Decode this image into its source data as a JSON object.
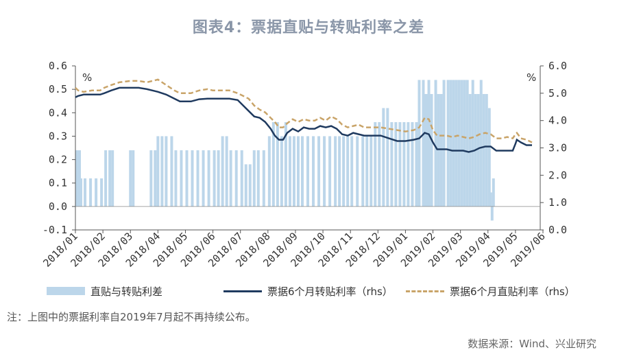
{
  "title": "图表4：票据直贴与转贴利率之差",
  "note": "注：上图中的票据利率自2019年7月起不再持续公布。",
  "source": "数据来源：Wind、兴业研究",
  "colors": {
    "bar": "#bcd6ea",
    "line": "#1f3a5f",
    "dash": "#c9a469"
  },
  "chart_data": {
    "type": "bar+line",
    "x_tick_labels": [
      "2018/01",
      "2018/02",
      "2018/03",
      "2018/04",
      "2018/05",
      "2018/06",
      "2018/07",
      "2018/08",
      "2018/09",
      "2018/10",
      "2018/11",
      "2018/12",
      "2019/01",
      "2019/02",
      "2019/03",
      "2019/04",
      "2019/05",
      "2019/06"
    ],
    "ylim_left": [
      -0.1,
      0.6
    ],
    "ylim_right": [
      0.0,
      6.0
    ],
    "y_ticks_left": [
      "0.6",
      "0.5",
      "0.4",
      "0.3",
      "0.2",
      "0.1",
      "0.0",
      "-0.1"
    ],
    "y_ticks_right": [
      "6.0",
      "5.0",
      "4.0",
      "3.0",
      "2.0",
      "1.0",
      "0.0"
    ],
    "unit_left": "%",
    "unit_right": "%",
    "grid": false,
    "legend_position": "bottom",
    "series": [
      {
        "name": "直贴与转贴利差",
        "type": "bar",
        "axis": "left",
        "points": [
          [
            0.0,
            0.24
          ],
          [
            0.1,
            0.24
          ],
          [
            0.15,
            0.12
          ],
          [
            0.3,
            0.12
          ],
          [
            0.5,
            0.12
          ],
          [
            0.7,
            0.12
          ],
          [
            0.9,
            0.12
          ],
          [
            1.05,
            0.24
          ],
          [
            1.2,
            0.24
          ],
          [
            1.3,
            0.24
          ],
          [
            1.95,
            0.24
          ],
          [
            2.05,
            0.24
          ],
          [
            2.7,
            0.24
          ],
          [
            2.85,
            0.24
          ],
          [
            2.95,
            0.3
          ],
          [
            3.1,
            0.3
          ],
          [
            3.25,
            0.3
          ],
          [
            3.45,
            0.3
          ],
          [
            3.6,
            0.24
          ],
          [
            3.8,
            0.24
          ],
          [
            4.0,
            0.24
          ],
          [
            4.2,
            0.24
          ],
          [
            4.4,
            0.24
          ],
          [
            4.6,
            0.24
          ],
          [
            4.8,
            0.24
          ],
          [
            5.0,
            0.24
          ],
          [
            5.15,
            0.24
          ],
          [
            5.3,
            0.3
          ],
          [
            5.45,
            0.3
          ],
          [
            5.6,
            0.24
          ],
          [
            5.8,
            0.24
          ],
          [
            6.0,
            0.24
          ],
          [
            6.15,
            0.18
          ],
          [
            6.3,
            0.18
          ],
          [
            6.45,
            0.24
          ],
          [
            6.6,
            0.24
          ],
          [
            6.8,
            0.24
          ],
          [
            7.0,
            0.3
          ],
          [
            7.15,
            0.36
          ],
          [
            7.3,
            0.36
          ],
          [
            7.45,
            0.3
          ],
          [
            7.6,
            0.36
          ],
          [
            7.75,
            0.3
          ],
          [
            7.9,
            0.3
          ],
          [
            8.05,
            0.3
          ],
          [
            8.2,
            0.3
          ],
          [
            8.4,
            0.3
          ],
          [
            8.6,
            0.3
          ],
          [
            8.8,
            0.3
          ],
          [
            9.0,
            0.3
          ],
          [
            9.2,
            0.3
          ],
          [
            9.4,
            0.3
          ],
          [
            9.55,
            0.3
          ],
          [
            9.7,
            0.3
          ],
          [
            9.85,
            0.3
          ],
          [
            10.0,
            0.3
          ],
          [
            10.2,
            0.3
          ],
          [
            10.4,
            0.3
          ],
          [
            10.55,
            0.3
          ],
          [
            10.7,
            0.3
          ],
          [
            10.85,
            0.36
          ],
          [
            11.0,
            0.36
          ],
          [
            11.15,
            0.42
          ],
          [
            11.3,
            0.42
          ],
          [
            11.45,
            0.36
          ],
          [
            11.6,
            0.36
          ],
          [
            11.75,
            0.36
          ],
          [
            11.9,
            0.36
          ],
          [
            12.05,
            0.36
          ],
          [
            12.2,
            0.36
          ],
          [
            12.35,
            0.36
          ],
          [
            12.45,
            0.54
          ],
          [
            12.6,
            0.54
          ],
          [
            12.7,
            0.48
          ],
          [
            12.8,
            0.54
          ],
          [
            12.9,
            0.48
          ],
          [
            13.05,
            0.54
          ],
          [
            13.15,
            0.48
          ],
          [
            13.25,
            0.48
          ],
          [
            13.35,
            0.54
          ],
          [
            13.5,
            0.54
          ],
          [
            13.6,
            0.54
          ],
          [
            13.7,
            0.54
          ],
          [
            13.8,
            0.54
          ],
          [
            13.9,
            0.54
          ],
          [
            14.0,
            0.54
          ],
          [
            14.1,
            0.54
          ],
          [
            14.2,
            0.54
          ],
          [
            14.3,
            0.48
          ],
          [
            14.4,
            0.54
          ],
          [
            14.5,
            0.48
          ],
          [
            14.6,
            0.48
          ],
          [
            14.7,
            0.54
          ],
          [
            14.8,
            0.48
          ],
          [
            14.9,
            0.48
          ],
          [
            15.0,
            0.42
          ],
          [
            15.05,
            0.06
          ],
          [
            15.1,
            -0.06
          ],
          [
            15.15,
            0.12
          ]
        ]
      },
      {
        "name": "票据6个月转贴利率（rhs）",
        "type": "line",
        "axis": "right",
        "points": [
          [
            0.0,
            4.85
          ],
          [
            0.1,
            4.9
          ],
          [
            0.3,
            4.95
          ],
          [
            0.6,
            4.95
          ],
          [
            0.9,
            4.95
          ],
          [
            1.05,
            5.0
          ],
          [
            1.3,
            5.1
          ],
          [
            1.6,
            5.2
          ],
          [
            2.0,
            5.2
          ],
          [
            2.3,
            5.2
          ],
          [
            2.6,
            5.15
          ],
          [
            2.8,
            5.1
          ],
          [
            3.0,
            5.05
          ],
          [
            3.3,
            4.95
          ],
          [
            3.6,
            4.8
          ],
          [
            3.8,
            4.7
          ],
          [
            4.0,
            4.7
          ],
          [
            4.2,
            4.7
          ],
          [
            4.5,
            4.78
          ],
          [
            4.8,
            4.8
          ],
          [
            5.0,
            4.8
          ],
          [
            5.3,
            4.8
          ],
          [
            5.6,
            4.8
          ],
          [
            5.9,
            4.75
          ],
          [
            6.1,
            4.55
          ],
          [
            6.3,
            4.35
          ],
          [
            6.5,
            4.15
          ],
          [
            6.7,
            4.1
          ],
          [
            6.9,
            3.95
          ],
          [
            7.1,
            3.7
          ],
          [
            7.25,
            3.45
          ],
          [
            7.4,
            3.3
          ],
          [
            7.55,
            3.3
          ],
          [
            7.7,
            3.55
          ],
          [
            7.9,
            3.7
          ],
          [
            8.1,
            3.6
          ],
          [
            8.3,
            3.75
          ],
          [
            8.5,
            3.7
          ],
          [
            8.7,
            3.7
          ],
          [
            8.9,
            3.8
          ],
          [
            9.1,
            3.75
          ],
          [
            9.3,
            3.8
          ],
          [
            9.5,
            3.7
          ],
          [
            9.7,
            3.5
          ],
          [
            9.9,
            3.45
          ],
          [
            10.1,
            3.55
          ],
          [
            10.3,
            3.5
          ],
          [
            10.5,
            3.45
          ],
          [
            10.8,
            3.45
          ],
          [
            11.1,
            3.45
          ],
          [
            11.4,
            3.35
          ],
          [
            11.7,
            3.25
          ],
          [
            12.0,
            3.25
          ],
          [
            12.3,
            3.3
          ],
          [
            12.5,
            3.35
          ],
          [
            12.7,
            3.55
          ],
          [
            12.85,
            3.5
          ],
          [
            13.0,
            3.2
          ],
          [
            13.15,
            2.95
          ],
          [
            13.3,
            2.95
          ],
          [
            13.5,
            2.95
          ],
          [
            13.7,
            2.9
          ],
          [
            13.9,
            2.9
          ],
          [
            14.1,
            2.9
          ],
          [
            14.3,
            2.85
          ],
          [
            14.5,
            2.9
          ],
          [
            14.7,
            3.0
          ],
          [
            14.9,
            3.05
          ],
          [
            15.1,
            3.05
          ],
          [
            15.3,
            2.9
          ],
          [
            15.5,
            2.9
          ],
          [
            15.7,
            2.9
          ],
          [
            15.9,
            2.9
          ],
          [
            16.0,
            3.15
          ],
          [
            16.05,
            3.3
          ],
          [
            16.2,
            3.2
          ],
          [
            16.4,
            3.1
          ],
          [
            16.6,
            3.1
          ]
        ]
      },
      {
        "name": "票据6个月直贴利率（rhs）",
        "type": "line",
        "axis": "right",
        "points": [
          [
            0.0,
            5.2
          ],
          [
            0.1,
            5.1
          ],
          [
            0.3,
            5.05
          ],
          [
            0.6,
            5.1
          ],
          [
            0.9,
            5.1
          ],
          [
            1.05,
            5.2
          ],
          [
            1.3,
            5.3
          ],
          [
            1.6,
            5.4
          ],
          [
            2.0,
            5.45
          ],
          [
            2.3,
            5.45
          ],
          [
            2.6,
            5.4
          ],
          [
            2.8,
            5.45
          ],
          [
            3.0,
            5.5
          ],
          [
            3.3,
            5.3
          ],
          [
            3.6,
            5.1
          ],
          [
            3.8,
            5.0
          ],
          [
            4.0,
            5.0
          ],
          [
            4.2,
            5.0
          ],
          [
            4.5,
            5.1
          ],
          [
            4.8,
            5.15
          ],
          [
            5.0,
            5.1
          ],
          [
            5.3,
            5.1
          ],
          [
            5.6,
            5.1
          ],
          [
            5.9,
            5.0
          ],
          [
            6.1,
            4.9
          ],
          [
            6.3,
            4.8
          ],
          [
            6.5,
            4.55
          ],
          [
            6.7,
            4.4
          ],
          [
            6.9,
            4.3
          ],
          [
            7.1,
            4.1
          ],
          [
            7.25,
            3.95
          ],
          [
            7.4,
            3.75
          ],
          [
            7.55,
            3.75
          ],
          [
            7.7,
            3.9
          ],
          [
            7.9,
            4.05
          ],
          [
            8.1,
            3.95
          ],
          [
            8.3,
            4.05
          ],
          [
            8.5,
            4.0
          ],
          [
            8.7,
            4.0
          ],
          [
            8.9,
            4.1
          ],
          [
            9.1,
            4.0
          ],
          [
            9.3,
            4.15
          ],
          [
            9.5,
            4.05
          ],
          [
            9.7,
            3.85
          ],
          [
            9.9,
            3.75
          ],
          [
            10.1,
            3.8
          ],
          [
            10.3,
            3.85
          ],
          [
            10.5,
            3.75
          ],
          [
            10.8,
            3.75
          ],
          [
            11.1,
            3.75
          ],
          [
            11.4,
            3.7
          ],
          [
            11.7,
            3.65
          ],
          [
            12.0,
            3.6
          ],
          [
            12.3,
            3.65
          ],
          [
            12.5,
            3.75
          ],
          [
            12.7,
            4.1
          ],
          [
            12.85,
            4.05
          ],
          [
            13.0,
            3.65
          ],
          [
            13.15,
            3.45
          ],
          [
            13.3,
            3.45
          ],
          [
            13.5,
            3.45
          ],
          [
            13.7,
            3.4
          ],
          [
            13.9,
            3.45
          ],
          [
            14.1,
            3.4
          ],
          [
            14.3,
            3.35
          ],
          [
            14.5,
            3.4
          ],
          [
            14.7,
            3.5
          ],
          [
            14.9,
            3.55
          ],
          [
            15.1,
            3.5
          ],
          [
            15.3,
            3.35
          ],
          [
            15.5,
            3.35
          ],
          [
            15.7,
            3.4
          ],
          [
            15.9,
            3.35
          ],
          [
            16.0,
            3.5
          ],
          [
            16.05,
            3.55
          ],
          [
            16.2,
            3.35
          ],
          [
            16.4,
            3.3
          ],
          [
            16.6,
            3.2
          ]
        ]
      }
    ]
  }
}
